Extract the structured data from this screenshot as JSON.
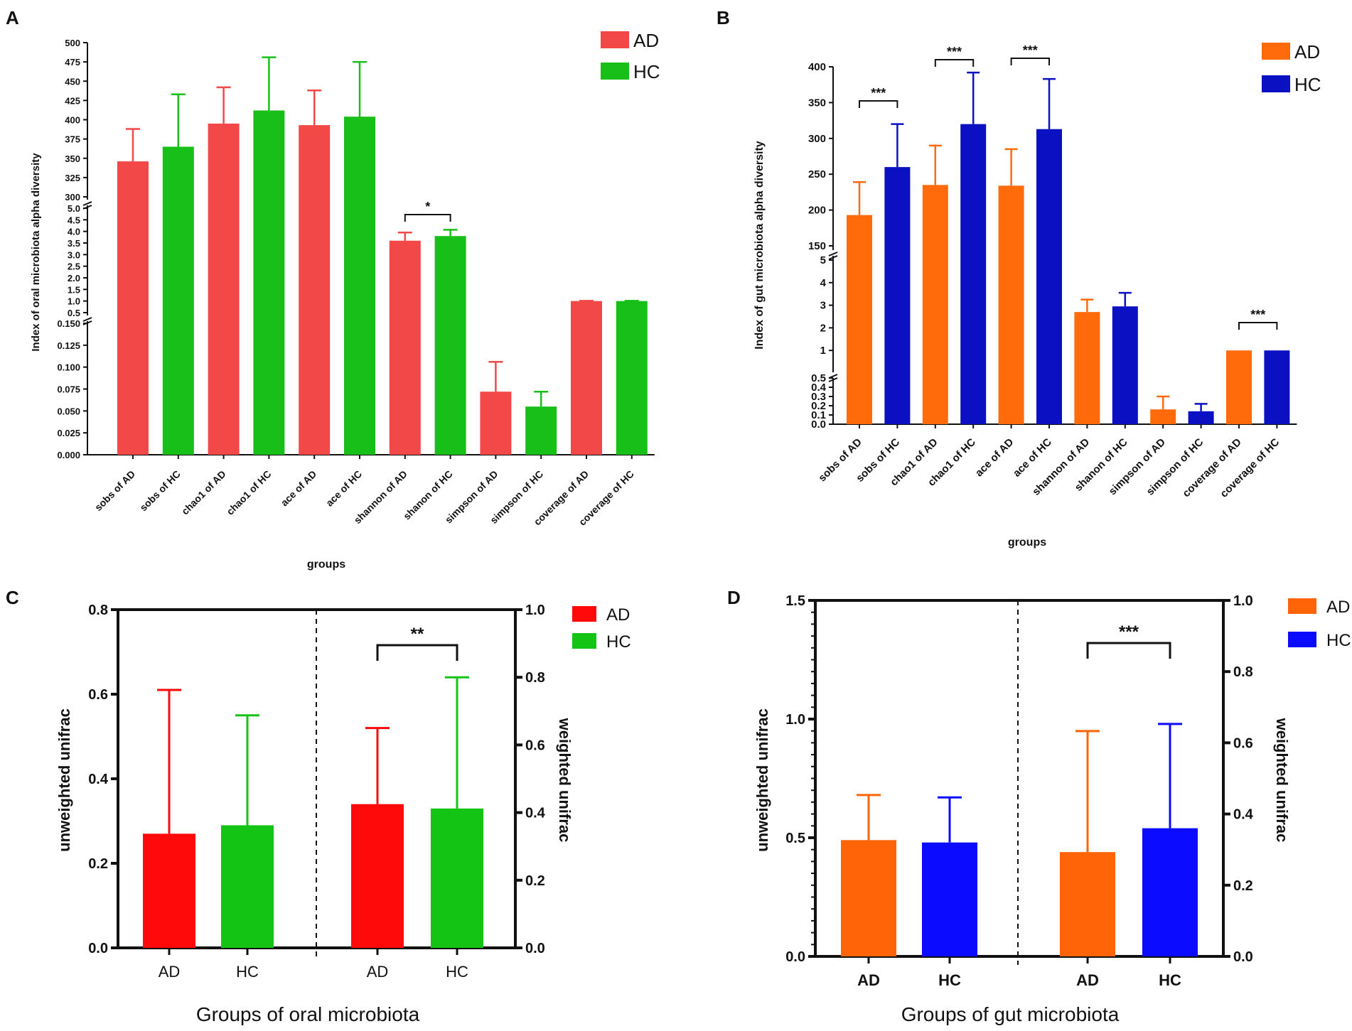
{
  "colors": {
    "a_ad": "#f24848",
    "a_hc": "#19bf19",
    "b_ad": "#ff6a0a",
    "b_hc": "#0b10c2",
    "c_ad": "#ff0a0a",
    "c_hc": "#14c414",
    "d_ad": "#ff6408",
    "d_hc": "#0b0bff"
  },
  "chart_data": [
    {
      "panel": "A",
      "type": "bar",
      "ylabel": "Index of oral microbiota alpha diversity",
      "xlabel": "groups",
      "legend": [
        "AD",
        "HC"
      ],
      "segments": [
        {
          "ylim": [
            300,
            500
          ],
          "ticks": [
            "300",
            "325",
            "350",
            "375",
            "400",
            "425",
            "450",
            "475",
            "500"
          ],
          "tick_values": [
            300,
            325,
            350,
            375,
            400,
            425,
            450,
            475,
            500
          ]
        },
        {
          "ylim": [
            0.5,
            5.0
          ],
          "ticks": [
            "0.5",
            "1.0",
            "1.5",
            "2.0",
            "2.5",
            "3.0",
            "3.5",
            "4.0",
            "4.5",
            "5.0"
          ],
          "tick_values": [
            0.5,
            1,
            1.5,
            2,
            2.5,
            3,
            3.5,
            4,
            4.5,
            5
          ]
        },
        {
          "ylim": [
            0,
            0.15
          ],
          "ticks": [
            "0.000",
            "0.025",
            "0.050",
            "0.075",
            "0.100",
            "0.125",
            "0.150"
          ],
          "tick_values": [
            0,
            0.025,
            0.05,
            0.075,
            0.1,
            0.125,
            0.15
          ]
        }
      ],
      "categories": [
        "sobs of AD",
        "sobs of HC",
        "chao1 of AD",
        "chao1 of HC",
        "ace of AD",
        "ace of HC",
        "shannon of AD",
        "shanon of HC",
        "simpson of AD",
        "simpson of HC",
        "coverage of AD",
        "coverage of HC"
      ],
      "values": [
        346,
        365,
        395,
        412,
        393,
        404,
        3.6,
        3.8,
        0.072,
        0.055,
        1.0,
        1.0
      ],
      "errors": [
        42,
        68,
        47,
        69,
        45,
        71,
        0.35,
        0.27,
        0.034,
        0.017,
        0.01,
        0.01
      ],
      "segment_of": [
        0,
        0,
        0,
        0,
        0,
        0,
        1,
        1,
        2,
        2,
        1,
        1
      ],
      "group": [
        "AD",
        "HC",
        "AD",
        "HC",
        "AD",
        "HC",
        "AD",
        "HC",
        "AD",
        "HC",
        "AD",
        "HC"
      ],
      "significance": [
        {
          "from": 6,
          "to": 7,
          "label": "*"
        }
      ]
    },
    {
      "panel": "B",
      "type": "bar",
      "ylabel": "Index of gut microbiota alpha diversity",
      "xlabel": "groups",
      "legend": [
        "AD",
        "HC"
      ],
      "segments": [
        {
          "ylim": [
            150,
            400
          ],
          "ticks": [
            "150",
            "200",
            "250",
            "300",
            "350",
            "400"
          ],
          "tick_values": [
            150,
            200,
            250,
            300,
            350,
            400
          ]
        },
        {
          "ylim": [
            0,
            5
          ],
          "ticks": [
            "1",
            "2",
            "3",
            "4",
            "5"
          ],
          "tick_values": [
            1,
            2,
            3,
            4,
            5
          ]
        },
        {
          "ylim": [
            0,
            0.5
          ],
          "ticks": [
            "0.0",
            "0.1",
            "0.2",
            "0.3",
            "0.4",
            "0.5"
          ],
          "tick_values": [
            0,
            0.1,
            0.2,
            0.3,
            0.4,
            0.5
          ]
        }
      ],
      "categories": [
        "sobs of AD",
        "sobs of HC",
        "chao1 of AD",
        "chao1 of HC",
        "ace of AD",
        "ace of HC",
        "shannon of AD",
        "shanon of HC",
        "simpson of AD",
        "simpson of HC",
        "coverage of AD",
        "coverage of HC"
      ],
      "values": [
        193,
        260,
        235,
        320,
        234,
        313,
        2.7,
        2.95,
        0.16,
        0.14,
        1.0,
        1.0
      ],
      "errors": [
        46,
        60,
        55,
        72,
        51,
        70,
        0.55,
        0.6,
        0.14,
        0.08,
        0.0,
        0.0
      ],
      "segment_of": [
        0,
        0,
        0,
        0,
        0,
        0,
        1,
        1,
        2,
        2,
        1,
        1
      ],
      "group": [
        "AD",
        "HC",
        "AD",
        "HC",
        "AD",
        "HC",
        "AD",
        "HC",
        "AD",
        "HC",
        "AD",
        "HC"
      ],
      "significance": [
        {
          "from": 0,
          "to": 1,
          "label": "***"
        },
        {
          "from": 2,
          "to": 3,
          "label": "***"
        },
        {
          "from": 4,
          "to": 5,
          "label": "***"
        },
        {
          "from": 10,
          "to": 11,
          "label": "***"
        }
      ]
    },
    {
      "panel": "C",
      "type": "bar",
      "ylabel": "unweighted unifrac",
      "ylabel_right": "weighted unifrac",
      "xlabel": "Groups of oral microbiota",
      "legend": [
        "AD",
        "HC"
      ],
      "ylim": [
        0,
        0.8
      ],
      "ticks": [
        "0.0",
        "0.2",
        "0.4",
        "0.6",
        "0.8"
      ],
      "tick_values": [
        0,
        0.2,
        0.4,
        0.6,
        0.8
      ],
      "ylim_right": [
        0,
        1.0
      ],
      "ticks_right": [
        "0.0",
        "0.2",
        "0.4",
        "0.6",
        "0.8",
        "1.0"
      ],
      "tick_values_right": [
        0,
        0.2,
        0.4,
        0.6,
        0.8,
        1.0
      ],
      "categories": [
        "AD",
        "HC",
        "AD",
        "HC"
      ],
      "axis": [
        "left",
        "left",
        "right",
        "right"
      ],
      "values": [
        0.27,
        0.29,
        0.425,
        0.412
      ],
      "errors": [
        0.34,
        0.26,
        0.225,
        0.388
      ],
      "group": [
        "AD",
        "HC",
        "AD",
        "HC"
      ],
      "significance": [
        {
          "from": 2,
          "to": 3,
          "label": "**"
        }
      ]
    },
    {
      "panel": "D",
      "type": "bar",
      "ylabel": "unweighted unifrac",
      "ylabel_right": "weighted unifrac",
      "xlabel": "Groups of gut microbiota",
      "legend": [
        "AD",
        "HC"
      ],
      "ylim": [
        0,
        1.5
      ],
      "ticks": [
        "0.0",
        "0.5",
        "1.0",
        "1.5"
      ],
      "tick_values": [
        0,
        0.5,
        1.0,
        1.5
      ],
      "ylim_right": [
        0,
        1.0
      ],
      "ticks_right": [
        "0.0",
        "0.2",
        "0.4",
        "0.6",
        "0.8",
        "1.0"
      ],
      "tick_values_right": [
        0,
        0.2,
        0.4,
        0.6,
        0.8,
        1.0
      ],
      "categories": [
        "AD",
        "HC",
        "AD",
        "HC"
      ],
      "axis": [
        "left",
        "left",
        "right",
        "right"
      ],
      "values": [
        0.49,
        0.48,
        0.293,
        0.36
      ],
      "errors": [
        0.19,
        0.19,
        0.34,
        0.293
      ],
      "group": [
        "AD",
        "HC",
        "AD",
        "HC"
      ],
      "significance": [
        {
          "from": 2,
          "to": 3,
          "label": "***"
        }
      ]
    }
  ]
}
